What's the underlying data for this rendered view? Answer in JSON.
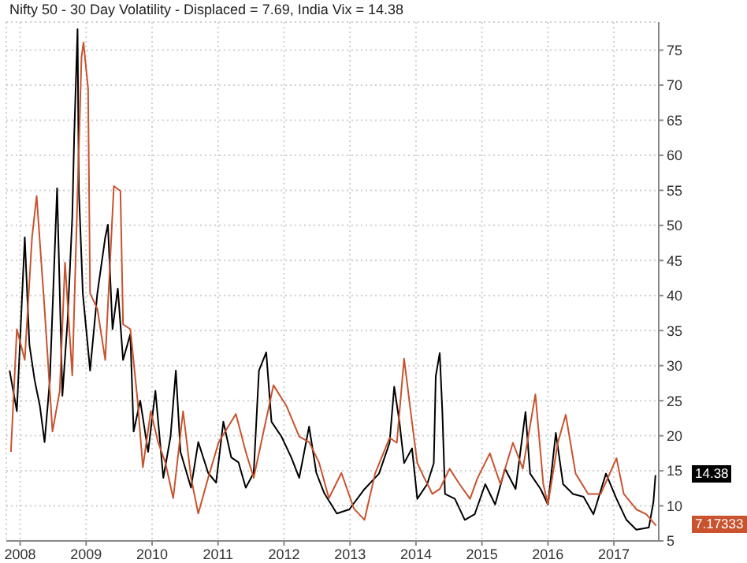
{
  "chart_data": {
    "type": "line",
    "title": "Nifty 50 - 30 Day Volatility - Displaced = 7.69, India Vix = 14.38",
    "xlim": [
      2007.79,
      2017.68
    ],
    "xticks": [
      2008,
      2009,
      2010,
      2011,
      2012,
      2013,
      2014,
      2015,
      2016,
      2017
    ],
    "ylim": [
      5,
      79
    ],
    "yticks": [
      5,
      10,
      15,
      20,
      25,
      30,
      35,
      40,
      45,
      50,
      55,
      60,
      65,
      70,
      75
    ],
    "grid": true,
    "line_style": "solid",
    "marker": "none",
    "annotations": [
      "14.38",
      "7.17333"
    ],
    "series": [
      {
        "color": "#000000",
        "x": [
          2007.84,
          2007.95,
          2008.07,
          2008.14,
          2008.22,
          2008.3,
          2008.37,
          2008.45,
          2008.56,
          2008.64,
          2008.72,
          2008.79,
          2008.82,
          2008.87,
          2008.89,
          2008.95,
          2009.06,
          2009.17,
          2009.29,
          2009.33,
          2009.4,
          2009.48,
          2009.56,
          2009.67,
          2009.72,
          2009.82,
          2009.94,
          2010.05,
          2010.17,
          2010.28,
          2010.36,
          2010.43,
          2010.59,
          2010.7,
          2010.85,
          2010.97,
          2011.08,
          2011.2,
          2011.31,
          2011.42,
          2011.54,
          2011.62,
          2011.73,
          2011.81,
          2011.96,
          2012.11,
          2012.23,
          2012.38,
          2012.49,
          2012.61,
          2012.8,
          2012.99,
          2013.22,
          2013.44,
          2013.6,
          2013.67,
          2013.75,
          2013.82,
          2013.94,
          2014.02,
          2014.17,
          2014.27,
          2014.3,
          2014.36,
          2014.4,
          2014.44,
          2014.59,
          2014.74,
          2014.89,
          2015.05,
          2015.2,
          2015.35,
          2015.51,
          2015.66,
          2015.73,
          2015.89,
          2016.0,
          2016.12,
          2016.23,
          2016.38,
          2016.54,
          2016.69,
          2016.88,
          2017.04,
          2017.19,
          2017.34,
          2017.53,
          2017.6,
          2017.63
        ],
        "values": [
          29.3,
          23.5,
          48.3,
          33,
          27.9,
          24.2,
          19.1,
          27.9,
          55.3,
          25.7,
          36.6,
          51.2,
          63,
          78,
          55,
          40.3,
          29.3,
          40.3,
          48.3,
          50.1,
          35.2,
          41,
          30.8,
          34.5,
          20.6,
          25,
          17.7,
          26.4,
          14,
          19.9,
          29.3,
          17.7,
          12.6,
          19.1,
          14.7,
          13.3,
          22,
          16.9,
          16.2,
          12.6,
          14.7,
          29.3,
          31.9,
          22,
          19.9,
          16.9,
          14,
          21.3,
          14.7,
          11.8,
          8.9,
          9.5,
          12.4,
          14.6,
          19,
          27,
          21.9,
          16.1,
          18.2,
          11,
          13.1,
          16.1,
          28.5,
          31.8,
          23.4,
          11.7,
          11,
          8,
          8.8,
          13.1,
          10.2,
          15.3,
          12.4,
          23.4,
          14.6,
          12.4,
          10.2,
          20.4,
          13.1,
          11.7,
          11.3,
          8.8,
          14.6,
          11,
          8,
          6.6,
          6.9,
          10.6,
          14.38
        ]
      },
      {
        "color": "#c8532e",
        "x": [
          2007.86,
          2007.95,
          2008.07,
          2008.18,
          2008.25,
          2008.37,
          2008.49,
          2008.6,
          2008.68,
          2008.79,
          2008.93,
          2008.96,
          2009.03,
          2009.06,
          2009.17,
          2009.29,
          2009.42,
          2009.52,
          2009.56,
          2009.67,
          2009.78,
          2009.86,
          2009.98,
          2010.09,
          2010.2,
          2010.32,
          2010.47,
          2010.59,
          2010.7,
          2010.85,
          2011.01,
          2011.27,
          2011.42,
          2011.54,
          2011.69,
          2011.84,
          2012.04,
          2012.23,
          2012.38,
          2012.53,
          2012.68,
          2012.87,
          2013.06,
          2013.22,
          2013.38,
          2013.6,
          2013.71,
          2013.82,
          2013.94,
          2014.02,
          2014.13,
          2014.25,
          2014.36,
          2014.51,
          2014.66,
          2014.82,
          2014.93,
          2015.12,
          2015.28,
          2015.47,
          2015.62,
          2015.81,
          2015.93,
          2016.0,
          2016.15,
          2016.27,
          2016.42,
          2016.61,
          2016.8,
          2017.04,
          2017.15,
          2017.34,
          2017.49,
          2017.64
        ],
        "values": [
          17.7,
          35.2,
          30.8,
          48.3,
          54.2,
          38.1,
          20.6,
          26.4,
          44.7,
          28.6,
          74,
          76.1,
          69.5,
          40.3,
          38.1,
          30.8,
          55.6,
          54.9,
          35.9,
          35.2,
          25,
          15.5,
          23.5,
          19.1,
          16.2,
          11.1,
          23.5,
          14,
          8.9,
          14,
          19.1,
          23.1,
          17.7,
          14,
          20.6,
          27.2,
          24.2,
          19.9,
          19.1,
          16.2,
          11.1,
          14.7,
          9.6,
          8,
          14.6,
          19.7,
          19,
          31,
          21.9,
          16.1,
          13.9,
          11.7,
          12.4,
          15.3,
          13.1,
          11,
          13.9,
          17.5,
          13.1,
          19,
          15.3,
          25.9,
          13.1,
          10.2,
          19,
          23,
          14.6,
          11.7,
          11.7,
          16.8,
          11.7,
          9.5,
          8.8,
          7.17333
        ]
      }
    ]
  }
}
